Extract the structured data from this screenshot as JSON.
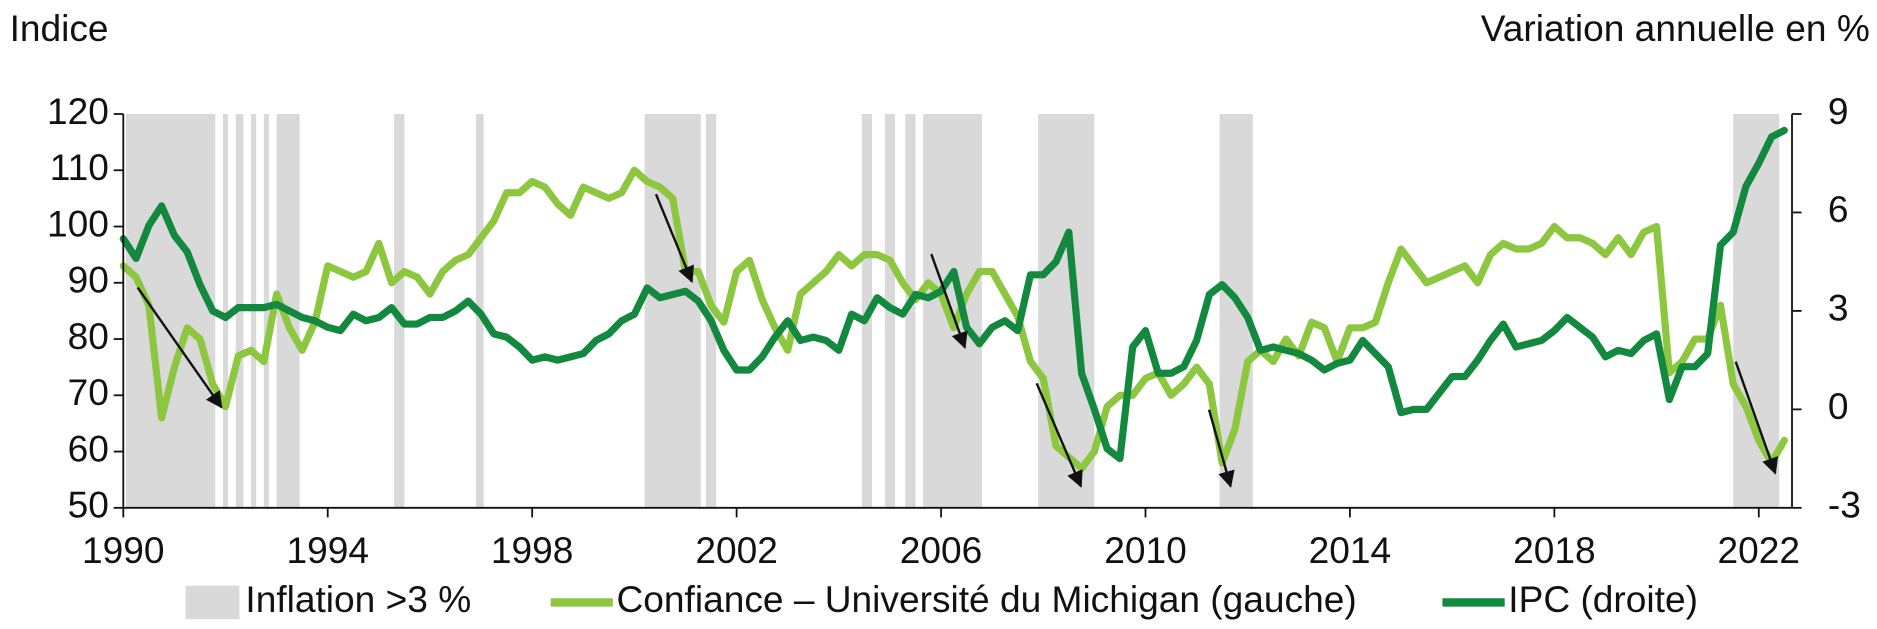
{
  "chart_data": {
    "type": "line",
    "y_title": "Indice",
    "y2_title": "Variation annuelle en %",
    "xlim": [
      1990,
      2022.65
    ],
    "xticks": [
      1990,
      1994,
      1998,
      2002,
      2006,
      2010,
      2014,
      2018,
      2022
    ],
    "ylim": [
      50,
      120
    ],
    "yticks": [
      50,
      60,
      70,
      80,
      90,
      100,
      110,
      120
    ],
    "y2lim": [
      -3,
      9
    ],
    "y2ticks": [
      -3,
      0,
      3,
      6,
      9
    ],
    "bands": {
      "name": "Inflation >3 %",
      "color": "#d9d9d9",
      "ranges": [
        [
          1990.05,
          1991.8
        ],
        [
          1991.95,
          1992.05
        ],
        [
          1992.2,
          1992.35
        ],
        [
          1992.5,
          1992.6
        ],
        [
          1992.75,
          1992.85
        ],
        [
          1993.0,
          1993.45
        ],
        [
          1995.3,
          1995.5
        ],
        [
          1996.9,
          1997.05
        ],
        [
          2000.2,
          2001.3
        ],
        [
          2001.4,
          2001.6
        ],
        [
          2004.45,
          2004.65
        ],
        [
          2004.9,
          2005.1
        ],
        [
          2005.3,
          2005.5
        ],
        [
          2005.65,
          2006.8
        ],
        [
          2007.9,
          2009.0
        ],
        [
          2011.45,
          2012.1
        ],
        [
          2021.5,
          2022.4
        ]
      ]
    },
    "x": [
      1990,
      1990.25,
      1990.5,
      1990.75,
      1991,
      1991.25,
      1991.5,
      1991.75,
      1992,
      1992.25,
      1992.5,
      1992.75,
      1993,
      1993.25,
      1993.5,
      1993.75,
      1994,
      1994.25,
      1994.5,
      1994.75,
      1995,
      1995.25,
      1995.5,
      1995.75,
      1996,
      1996.25,
      1996.5,
      1996.75,
      1997,
      1997.25,
      1997.5,
      1997.75,
      1998,
      1998.25,
      1998.5,
      1998.75,
      1999,
      1999.25,
      1999.5,
      1999.75,
      2000,
      2000.25,
      2000.5,
      2000.75,
      2001,
      2001.25,
      2001.5,
      2001.75,
      2002,
      2002.25,
      2002.5,
      2002.75,
      2003,
      2003.25,
      2003.5,
      2003.75,
      2004,
      2004.25,
      2004.5,
      2004.75,
      2005,
      2005.25,
      2005.5,
      2005.75,
      2006,
      2006.25,
      2006.5,
      2006.75,
      2007,
      2007.25,
      2007.5,
      2007.75,
      2008,
      2008.25,
      2008.5,
      2008.75,
      2009,
      2009.25,
      2009.5,
      2009.75,
      2010,
      2010.25,
      2010.5,
      2010.75,
      2011,
      2011.25,
      2011.5,
      2011.75,
      2012,
      2012.25,
      2012.5,
      2012.75,
      2013,
      2013.25,
      2013.5,
      2013.75,
      2014,
      2014.25,
      2014.5,
      2014.75,
      2015,
      2015.25,
      2015.5,
      2015.75,
      2016,
      2016.25,
      2016.5,
      2016.75,
      2017,
      2017.25,
      2017.5,
      2017.75,
      2018,
      2018.25,
      2018.5,
      2018.75,
      2019,
      2019.25,
      2019.5,
      2019.75,
      2020,
      2020.25,
      2020.5,
      2020.75,
      2021,
      2021.25,
      2021.5,
      2021.75,
      2022,
      2022.25,
      2022.5
    ],
    "series": [
      {
        "name": "Confiance – Université du Michigan (gauche)",
        "color": "#8dc63f",
        "axis": "y",
        "values": [
          93,
          91,
          86,
          66,
          75,
          82,
          80,
          72,
          68,
          77,
          78,
          76,
          88,
          82,
          78,
          83,
          93,
          92,
          91,
          92,
          97,
          90,
          92,
          91,
          88,
          92,
          94,
          95,
          98,
          101,
          106,
          106,
          108,
          107,
          104,
          102,
          107,
          106,
          105,
          106,
          110,
          108,
          107,
          105,
          92,
          92,
          86,
          83,
          92,
          94,
          87,
          82,
          78,
          88,
          90,
          92,
          95,
          93,
          95,
          95,
          94,
          90,
          87,
          90,
          88,
          82,
          88,
          92,
          92,
          88,
          84,
          76,
          73,
          61,
          59,
          57,
          60,
          68,
          70,
          70,
          73,
          74,
          70,
          72,
          75,
          72,
          58,
          64,
          76,
          78,
          76,
          80,
          77,
          83,
          82,
          76,
          82,
          82,
          83,
          90,
          96,
          93,
          90,
          91,
          92,
          93,
          90,
          95,
          97,
          96,
          96,
          97,
          100,
          98,
          98,
          97,
          95,
          98,
          95,
          99,
          100,
          74,
          76,
          80,
          80,
          86,
          72,
          68,
          62,
          58,
          62
        ]
      },
      {
        "name": "IPC (droite)",
        "color": "#13883f",
        "axis": "y2",
        "values": [
          5.2,
          4.6,
          5.6,
          6.2,
          5.3,
          4.8,
          3.8,
          3.0,
          2.8,
          3.1,
          3.1,
          3.1,
          3.2,
          3.0,
          2.8,
          2.7,
          2.5,
          2.4,
          2.9,
          2.7,
          2.8,
          3.1,
          2.6,
          2.6,
          2.8,
          2.8,
          3.0,
          3.3,
          2.9,
          2.3,
          2.2,
          1.9,
          1.5,
          1.6,
          1.5,
          1.6,
          1.7,
          2.1,
          2.3,
          2.7,
          2.9,
          3.7,
          3.4,
          3.5,
          3.6,
          3.3,
          2.7,
          1.8,
          1.2,
          1.2,
          1.6,
          2.2,
          2.7,
          2.1,
          2.2,
          2.1,
          1.8,
          2.9,
          2.7,
          3.4,
          3.1,
          2.9,
          3.5,
          3.4,
          3.6,
          4.2,
          2.5,
          2.0,
          2.5,
          2.7,
          2.4,
          4.1,
          4.1,
          4.5,
          5.4,
          1.1,
          0.0,
          -1.2,
          -1.5,
          1.9,
          2.4,
          1.1,
          1.1,
          1.3,
          2.1,
          3.5,
          3.8,
          3.4,
          2.8,
          1.8,
          1.9,
          1.8,
          1.7,
          1.5,
          1.2,
          1.4,
          1.5,
          2.1,
          1.7,
          1.3,
          -0.1,
          0.0,
          0.0,
          0.5,
          1.0,
          1.0,
          1.5,
          2.1,
          2.6,
          1.9,
          2.0,
          2.1,
          2.4,
          2.8,
          2.5,
          2.2,
          1.6,
          1.8,
          1.7,
          2.1,
          2.3,
          0.3,
          1.3,
          1.3,
          1.7,
          5.0,
          5.4,
          6.8,
          7.5,
          8.3,
          8.5
        ]
      }
    ]
  }
}
